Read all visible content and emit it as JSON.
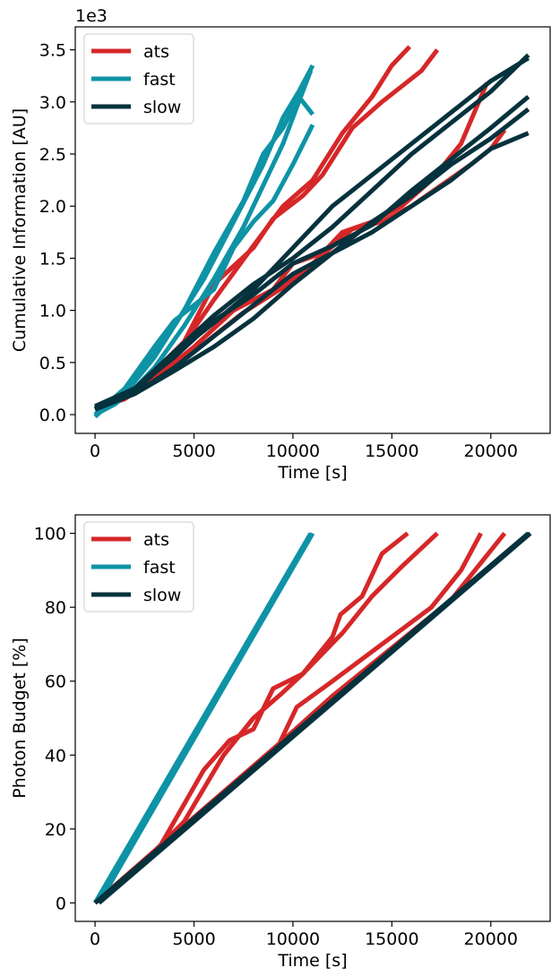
{
  "colors": {
    "ats": "#d62728",
    "fast": "#0e93a6",
    "slow": "#05323d"
  },
  "chart_data": [
    {
      "type": "line",
      "title": "",
      "xlabel": "Time [s]",
      "ylabel": "Cumulative Information [AU]",
      "offset_text": "1e3",
      "xlim": [
        -1000,
        23000
      ],
      "ylim": [
        -0.18,
        3.72
      ],
      "xticks": [
        0,
        5000,
        10000,
        15000,
        20000
      ],
      "xtick_labels": [
        "0",
        "5000",
        "10000",
        "15000",
        "20000"
      ],
      "yticks": [
        0,
        0.5,
        1.0,
        1.5,
        2.0,
        2.5,
        3.0,
        3.5
      ],
      "ytick_labels": [
        "0.0",
        "0.5",
        "1.0",
        "1.5",
        "2.0",
        "2.5",
        "3.0",
        "3.5"
      ],
      "grid": false,
      "legend": {
        "position": "top-left",
        "entries": [
          "ats",
          "fast",
          "slow"
        ]
      },
      "series": [
        {
          "name": "ats",
          "group": "ats",
          "points": [
            [
              0,
              0.05
            ],
            [
              1000,
              0.12
            ],
            [
              2500,
              0.3
            ],
            [
              4000,
              0.55
            ],
            [
              6000,
              1.1
            ],
            [
              8000,
              1.62
            ],
            [
              9500,
              2.0
            ],
            [
              11000,
              2.25
            ],
            [
              12500,
              2.7
            ],
            [
              14000,
              3.05
            ],
            [
              15000,
              3.35
            ],
            [
              15900,
              3.53
            ]
          ]
        },
        {
          "group": "ats",
          "points": [
            [
              0,
              0.05
            ],
            [
              1200,
              0.15
            ],
            [
              2500,
              0.32
            ],
            [
              4500,
              0.7
            ],
            [
              6000,
              1.25
            ],
            [
              8000,
              1.6
            ],
            [
              9000,
              1.88
            ],
            [
              10500,
              2.1
            ],
            [
              11500,
              2.3
            ],
            [
              13000,
              2.75
            ],
            [
              14500,
              3.0
            ],
            [
              16500,
              3.3
            ],
            [
              17300,
              3.5
            ]
          ]
        },
        {
          "group": "ats",
          "points": [
            [
              0,
              0.05
            ],
            [
              1500,
              0.15
            ],
            [
              3000,
              0.35
            ],
            [
              5000,
              0.65
            ],
            [
              7000,
              1.0
            ],
            [
              9000,
              1.2
            ],
            [
              10000,
              1.45
            ],
            [
              11500,
              1.55
            ],
            [
              12500,
              1.75
            ],
            [
              14000,
              1.85
            ],
            [
              15500,
              2.0
            ],
            [
              17000,
              2.25
            ],
            [
              18500,
              2.6
            ],
            [
              19800,
              3.18
            ]
          ]
        },
        {
          "group": "ats",
          "points": [
            [
              0,
              0.05
            ],
            [
              2000,
              0.2
            ],
            [
              3500,
              0.4
            ],
            [
              5500,
              0.68
            ],
            [
              7500,
              0.98
            ],
            [
              9500,
              1.22
            ],
            [
              11000,
              1.45
            ],
            [
              13000,
              1.78
            ],
            [
              14500,
              1.85
            ],
            [
              16000,
              2.0
            ],
            [
              17500,
              2.2
            ],
            [
              19000,
              2.4
            ],
            [
              20000,
              2.55
            ],
            [
              20700,
              2.73
            ]
          ]
        },
        {
          "name": "fast",
          "group": "fast",
          "points": [
            [
              0,
              0.0
            ],
            [
              1000,
              0.1
            ],
            [
              2000,
              0.25
            ],
            [
              3000,
              0.45
            ],
            [
              4500,
              0.85
            ],
            [
              6000,
              1.3
            ],
            [
              7500,
              1.8
            ],
            [
              8500,
              2.2
            ],
            [
              9500,
              2.6
            ],
            [
              10300,
              3.0
            ],
            [
              10900,
              3.3
            ]
          ]
        },
        {
          "group": "fast",
          "points": [
            [
              0,
              -0.02
            ],
            [
              1000,
              0.15
            ],
            [
              2500,
              0.45
            ],
            [
              4000,
              0.85
            ],
            [
              5500,
              1.3
            ],
            [
              7000,
              1.85
            ],
            [
              8500,
              2.4
            ],
            [
              9500,
              2.85
            ],
            [
              10300,
              3.1
            ],
            [
              11000,
              3.35
            ]
          ]
        },
        {
          "group": "fast",
          "points": [
            [
              0,
              0.0
            ],
            [
              1500,
              0.2
            ],
            [
              3000,
              0.55
            ],
            [
              4500,
              1.0
            ],
            [
              6000,
              1.55
            ],
            [
              7500,
              2.05
            ],
            [
              8500,
              2.5
            ],
            [
              9500,
              2.75
            ],
            [
              10300,
              3.05
            ],
            [
              11000,
              2.88
            ]
          ]
        },
        {
          "group": "fast",
          "points": [
            [
              0,
              0.0
            ],
            [
              1500,
              0.25
            ],
            [
              3000,
              0.65
            ],
            [
              4000,
              0.9
            ],
            [
              6000,
              1.2
            ],
            [
              7000,
              1.6
            ],
            [
              8000,
              1.85
            ],
            [
              9000,
              2.05
            ],
            [
              10000,
              2.4
            ],
            [
              11000,
              2.78
            ]
          ]
        },
        {
          "name": "slow",
          "group": "slow",
          "points": [
            [
              0,
              0.05
            ],
            [
              2000,
              0.2
            ],
            [
              4000,
              0.45
            ],
            [
              6000,
              0.75
            ],
            [
              8000,
              1.05
            ],
            [
              10000,
              1.35
            ],
            [
              12000,
              1.55
            ],
            [
              14000,
              1.75
            ],
            [
              16000,
              2.0
            ],
            [
              18000,
              2.25
            ],
            [
              20000,
              2.55
            ],
            [
              21900,
              2.7
            ]
          ]
        },
        {
          "group": "slow",
          "points": [
            [
              0,
              0.05
            ],
            [
              2000,
              0.2
            ],
            [
              4000,
              0.42
            ],
            [
              6000,
              0.65
            ],
            [
              8000,
              0.92
            ],
            [
              10000,
              1.25
            ],
            [
              12000,
              1.55
            ],
            [
              14000,
              1.85
            ],
            [
              16000,
              2.1
            ],
            [
              18000,
              2.4
            ],
            [
              20000,
              2.65
            ],
            [
              21900,
              2.93
            ]
          ]
        },
        {
          "group": "slow",
          "points": [
            [
              0,
              0.08
            ],
            [
              2000,
              0.25
            ],
            [
              4000,
              0.55
            ],
            [
              6000,
              0.9
            ],
            [
              8000,
              1.15
            ],
            [
              10000,
              1.45
            ],
            [
              12000,
              1.62
            ],
            [
              14000,
              1.82
            ],
            [
              16000,
              2.15
            ],
            [
              18000,
              2.45
            ],
            [
              20000,
              2.75
            ],
            [
              21900,
              3.05
            ]
          ]
        },
        {
          "group": "slow",
          "points": [
            [
              0,
              0.06
            ],
            [
              2000,
              0.25
            ],
            [
              4000,
              0.6
            ],
            [
              6000,
              0.95
            ],
            [
              8000,
              1.25
            ],
            [
              10000,
              1.5
            ],
            [
              12000,
              1.8
            ],
            [
              14000,
              2.15
            ],
            [
              16000,
              2.5
            ],
            [
              18000,
              2.8
            ],
            [
              20000,
              3.1
            ],
            [
              21900,
              3.45
            ]
          ]
        },
        {
          "group": "slow",
          "points": [
            [
              0,
              0.05
            ],
            [
              2000,
              0.22
            ],
            [
              4000,
              0.58
            ],
            [
              6000,
              0.88
            ],
            [
              8000,
              1.2
            ],
            [
              10000,
              1.6
            ],
            [
              12000,
              2.0
            ],
            [
              14000,
              2.3
            ],
            [
              16000,
              2.6
            ],
            [
              18000,
              2.9
            ],
            [
              20000,
              3.2
            ],
            [
              21900,
              3.42
            ]
          ]
        }
      ]
    },
    {
      "type": "line",
      "title": "",
      "xlabel": "Time [s]",
      "ylabel": "Photon Budget [%]",
      "xlim": [
        -1000,
        23000
      ],
      "ylim": [
        -5,
        105
      ],
      "xticks": [
        0,
        5000,
        10000,
        15000,
        20000
      ],
      "xtick_labels": [
        "0",
        "5000",
        "10000",
        "15000",
        "20000"
      ],
      "yticks": [
        0,
        20,
        40,
        60,
        80,
        100
      ],
      "ytick_labels": [
        "0",
        "20",
        "40",
        "60",
        "80",
        "100"
      ],
      "grid": false,
      "legend": {
        "position": "top-left",
        "entries": [
          "ats",
          "fast",
          "slow"
        ]
      },
      "series": [
        {
          "name": "ats",
          "group": "ats",
          "points": [
            [
              0,
              0
            ],
            [
              3300,
              15.5
            ],
            [
              5500,
              36
            ],
            [
              6800,
              44
            ],
            [
              8000,
              47
            ],
            [
              9000,
              58
            ],
            [
              10500,
              62
            ],
            [
              12000,
              72
            ],
            [
              12400,
              78
            ],
            [
              13500,
              83
            ],
            [
              14500,
              94.5
            ],
            [
              15800,
              100
            ]
          ]
        },
        {
          "group": "ats",
          "points": [
            [
              0,
              0
            ],
            [
              3000,
              14
            ],
            [
              4500,
              22
            ],
            [
              6500,
              40
            ],
            [
              8000,
              50
            ],
            [
              9500,
              57
            ],
            [
              10500,
              62
            ],
            [
              12500,
              73
            ],
            [
              14000,
              83
            ],
            [
              15500,
              91
            ],
            [
              17300,
              100
            ]
          ]
        },
        {
          "group": "ats",
          "points": [
            [
              0,
              0
            ],
            [
              9300,
              43
            ],
            [
              10200,
              53
            ],
            [
              12000,
              60
            ],
            [
              15000,
              72
            ],
            [
              17000,
              80
            ],
            [
              18500,
              90
            ],
            [
              19500,
              100
            ]
          ]
        },
        {
          "group": "ats",
          "points": [
            [
              0,
              0
            ],
            [
              9500,
              44
            ],
            [
              12000,
              56
            ],
            [
              15000,
              69
            ],
            [
              18000,
              82
            ],
            [
              20700,
              100
            ]
          ]
        },
        {
          "name": "fast",
          "group": "fast",
          "points": [
            [
              0,
              0
            ],
            [
              10900,
              100
            ]
          ]
        },
        {
          "group": "fast",
          "points": [
            [
              200,
              0
            ],
            [
              11000,
              100
            ]
          ]
        },
        {
          "name": "slow",
          "group": "slow",
          "points": [
            [
              0,
              0
            ],
            [
              21900,
              100
            ]
          ]
        },
        {
          "group": "slow",
          "points": [
            [
              200,
              0
            ],
            [
              22000,
              100
            ]
          ]
        }
      ]
    }
  ]
}
